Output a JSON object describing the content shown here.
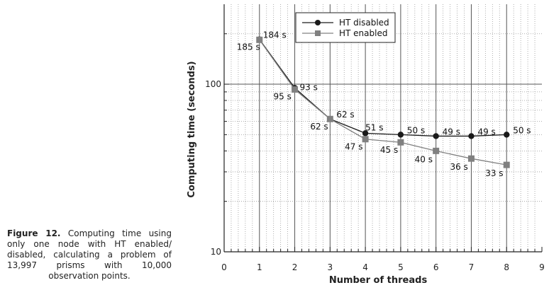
{
  "caption": {
    "label": "Figure 12.",
    "text": "Computing time using only one node with HT enabled/ disabled, calculating a problem of 13,997 prisms with 10,000 observation points."
  },
  "chart_data": {
    "type": "line",
    "xlabel": "Number of threads",
    "ylabel": "Computing time (seconds)",
    "xlim": [
      0,
      9
    ],
    "ylim": [
      10,
      300
    ],
    "yscale": "log",
    "grid": true,
    "legend_position": "top-right",
    "x_ticks": [
      "0",
      "1",
      "2",
      "3",
      "4",
      "5",
      "6",
      "7",
      "8",
      "9"
    ],
    "y_ticks": [
      {
        "value": 10,
        "label": "10"
      },
      {
        "value": 100,
        "label": "100"
      }
    ],
    "series": [
      {
        "name": "HT disabled",
        "marker": "circle",
        "color": "#1a1a1a",
        "x": [
          1,
          2,
          3,
          4,
          5,
          6,
          7,
          8
        ],
        "values": [
          185,
          95,
          62,
          51,
          50,
          49,
          49,
          50
        ],
        "labels": [
          "185 s",
          "95 s",
          "62 s",
          "51 s",
          "50 s",
          "49 s",
          "49 s",
          "50 s"
        ]
      },
      {
        "name": "HT enabled",
        "marker": "square",
        "color": "#808080",
        "x": [
          1,
          2,
          3,
          4,
          5,
          6,
          7,
          8
        ],
        "values": [
          184,
          93,
          62,
          47,
          45,
          40,
          36,
          33
        ],
        "labels": [
          "184 s",
          "93 s",
          "62 s",
          "47 s",
          "45 s",
          "40 s",
          "36 s",
          "33 s"
        ]
      }
    ]
  }
}
